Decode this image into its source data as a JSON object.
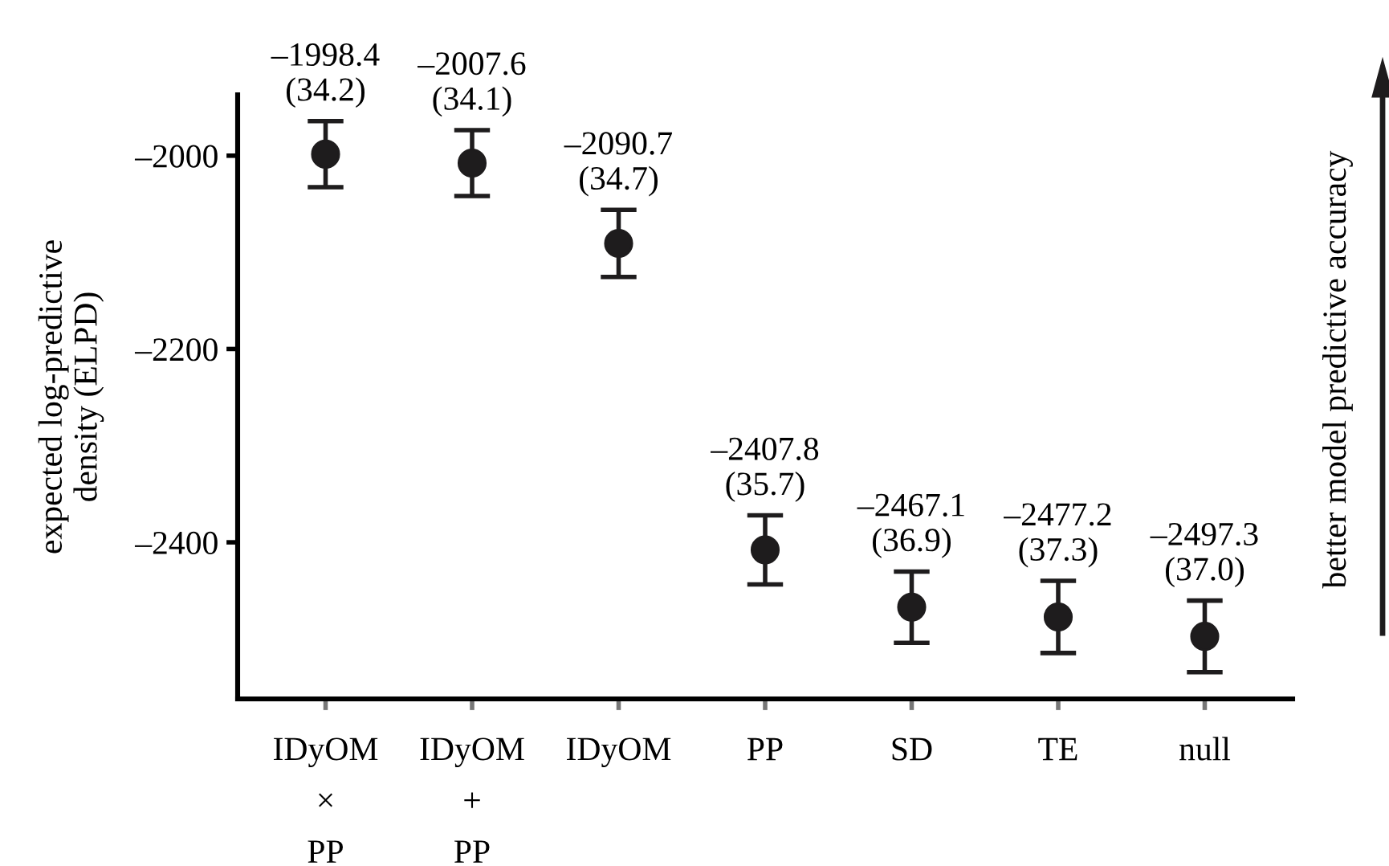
{
  "chart_data": {
    "type": "scatter",
    "ylabel": "expected log-predictive\ndensity (ELPD)",
    "categories": [
      "IDyOM\n×\nPP",
      "IDyOM\n+\nPP",
      "IDyOM",
      "PP",
      "SD",
      "TE",
      "null"
    ],
    "series": [
      {
        "color": "#1e1c1d",
        "values": [
          -1998.4,
          -2007.6,
          -2090.7,
          -2407.8,
          -2467.1,
          -2477.2,
          -2497.3
        ],
        "errors": [
          34.2,
          34.1,
          34.7,
          35.7,
          36.9,
          37.3,
          37.0
        ],
        "value_labels": [
          "–1998.4\n(34.2)",
          "–2007.6\n(34.1)",
          "–2090.7\n(34.7)",
          "–2407.8\n(35.7)",
          "–2467.1\n(36.9)",
          "–2477.2\n(37.3)",
          "–2497.3\n(37.0)"
        ]
      }
    ],
    "ylim": [
      -2562,
      -1937
    ],
    "yticks": [
      {
        "value": -2000,
        "label": "–2000"
      },
      {
        "value": -2200,
        "label": "–2200"
      },
      {
        "value": -2400,
        "label": "–2400"
      }
    ],
    "marker": "circle",
    "grid": false,
    "legend": false,
    "annotations": [
      "better model predictive accuracy"
    ]
  }
}
